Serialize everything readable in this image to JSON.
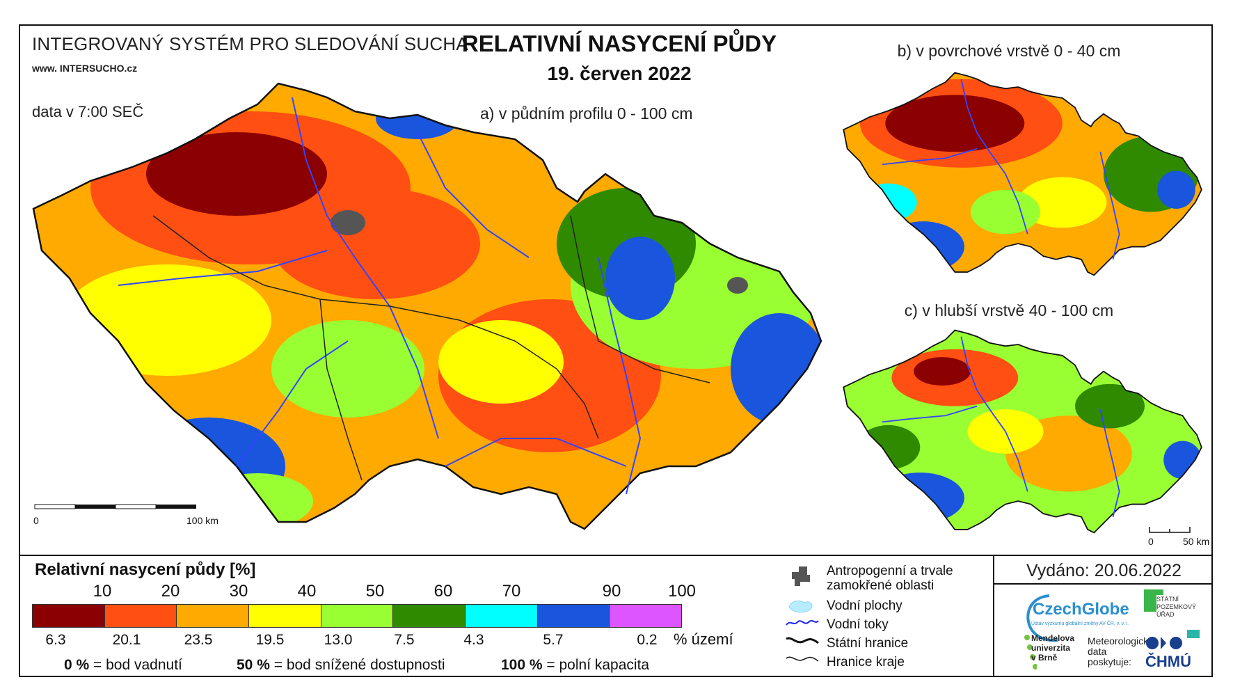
{
  "header": {
    "system_title": "INTEGROVANÝ SYSTÉM PRO SLEDOVÁNÍ SUCHA",
    "website": "www. INTERSUCHO.cz",
    "data_time": "data v 7:00 SEČ",
    "main_title": "RELATIVNÍ NASYCENÍ PŮDY",
    "date": "19. červen 2022"
  },
  "maps": {
    "a_label": "a) v půdním profilu 0 - 100 cm",
    "b_label": "b) v povrchové vrstvě 0 - 40 cm",
    "c_label": "c) v hlubší vrstvě 40 - 100 cm",
    "scale_main": {
      "start": "0",
      "end": "100 km"
    },
    "scale_small": {
      "start": "0",
      "end": "50 km"
    }
  },
  "legend": {
    "title": "Relativní nasycení půdy [%]",
    "thresholds": [
      "10",
      "20",
      "30",
      "40",
      "50",
      "60",
      "70",
      "90",
      "100"
    ],
    "classes": [
      {
        "color": "#8b0000",
        "share": "6.3"
      },
      {
        "color": "#ff4f12",
        "share": "20.1"
      },
      {
        "color": "#ffaa00",
        "share": "23.5"
      },
      {
        "color": "#ffff00",
        "share": "19.5"
      },
      {
        "color": "#99ff33",
        "share": "13.0"
      },
      {
        "color": "#2f8a00",
        "share": "7.5"
      },
      {
        "color": "#00ffff",
        "share": "4.3"
      },
      {
        "color": "#1a55dd",
        "share": "5.7"
      },
      {
        "color": "#dd55ff",
        "share": "0.2"
      }
    ],
    "share_unit": "% území",
    "notes": [
      {
        "value": "0 %",
        "text": "= bod vadnutí"
      },
      {
        "value": "50 %",
        "text": "= bod snížené dostupnosti"
      },
      {
        "value": "100 %",
        "text": "= polní kapacita"
      }
    ]
  },
  "map_legend": {
    "items": [
      {
        "icon": "urban-area-icon",
        "label": "Antropogenní a trvale\nzamokřené oblasti"
      },
      {
        "icon": "water-body-icon",
        "label": "Vodní plochy"
      },
      {
        "icon": "river-icon",
        "label": "Vodní toky"
      },
      {
        "icon": "state-border-icon",
        "label": "Státní hranice"
      },
      {
        "icon": "region-border-icon",
        "label": "Hranice kraje"
      }
    ]
  },
  "footer": {
    "issued": "Vydáno: 20.06.2022",
    "czechglobe": "CzechGlobe",
    "czechglobe_sub": "Ústav výzkumu globální změny AV ČR, v. v. i.",
    "spu": "STÁTNÍ\nPOZEMKOVÝ\nÚŘAD",
    "mendel": "Mendelova\nuniverzita\nv Brně",
    "meteo": "Meteorologická\ndata\nposkytuje:",
    "chmu": "ČHMÚ"
  }
}
